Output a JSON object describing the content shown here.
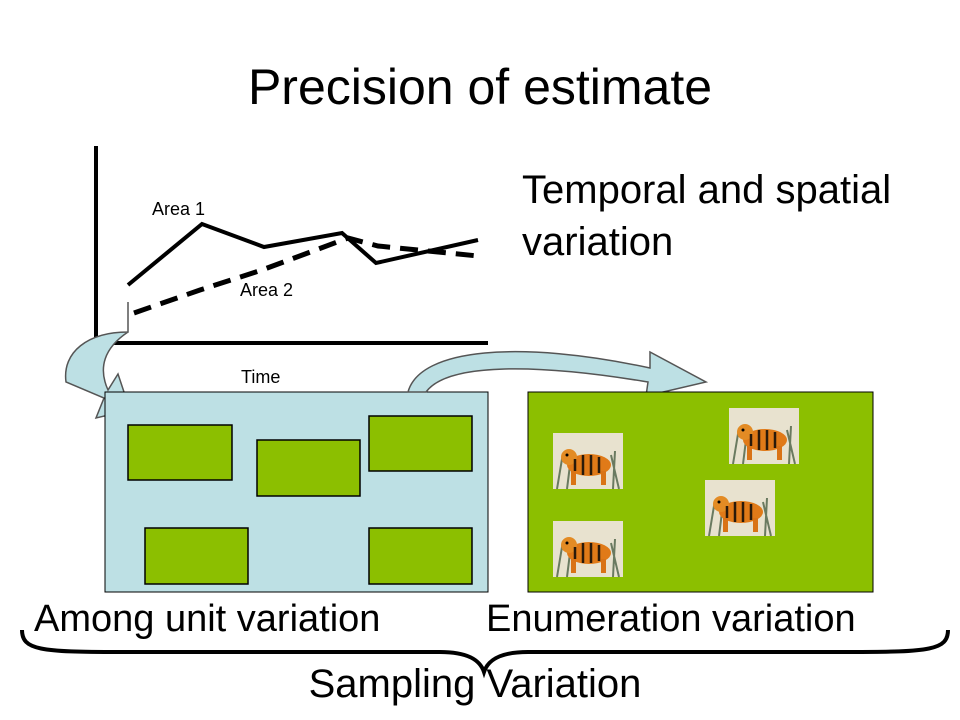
{
  "title": "Precision of estimate",
  "variation_label": "Temporal and spatial variation",
  "graph": {
    "series_labels": [
      "Area 1",
      "Area 2"
    ],
    "x_axis_label": "Time"
  },
  "labels": {
    "among_unit": "Among unit variation",
    "enumeration": "Enumeration variation",
    "sampling": "Sampling Variation"
  },
  "colors": {
    "unit_panel": "#bde0e4",
    "green": "#8cbf00",
    "arrow_fill": "#bde0e4"
  },
  "icons": [
    "tiger-image"
  ]
}
